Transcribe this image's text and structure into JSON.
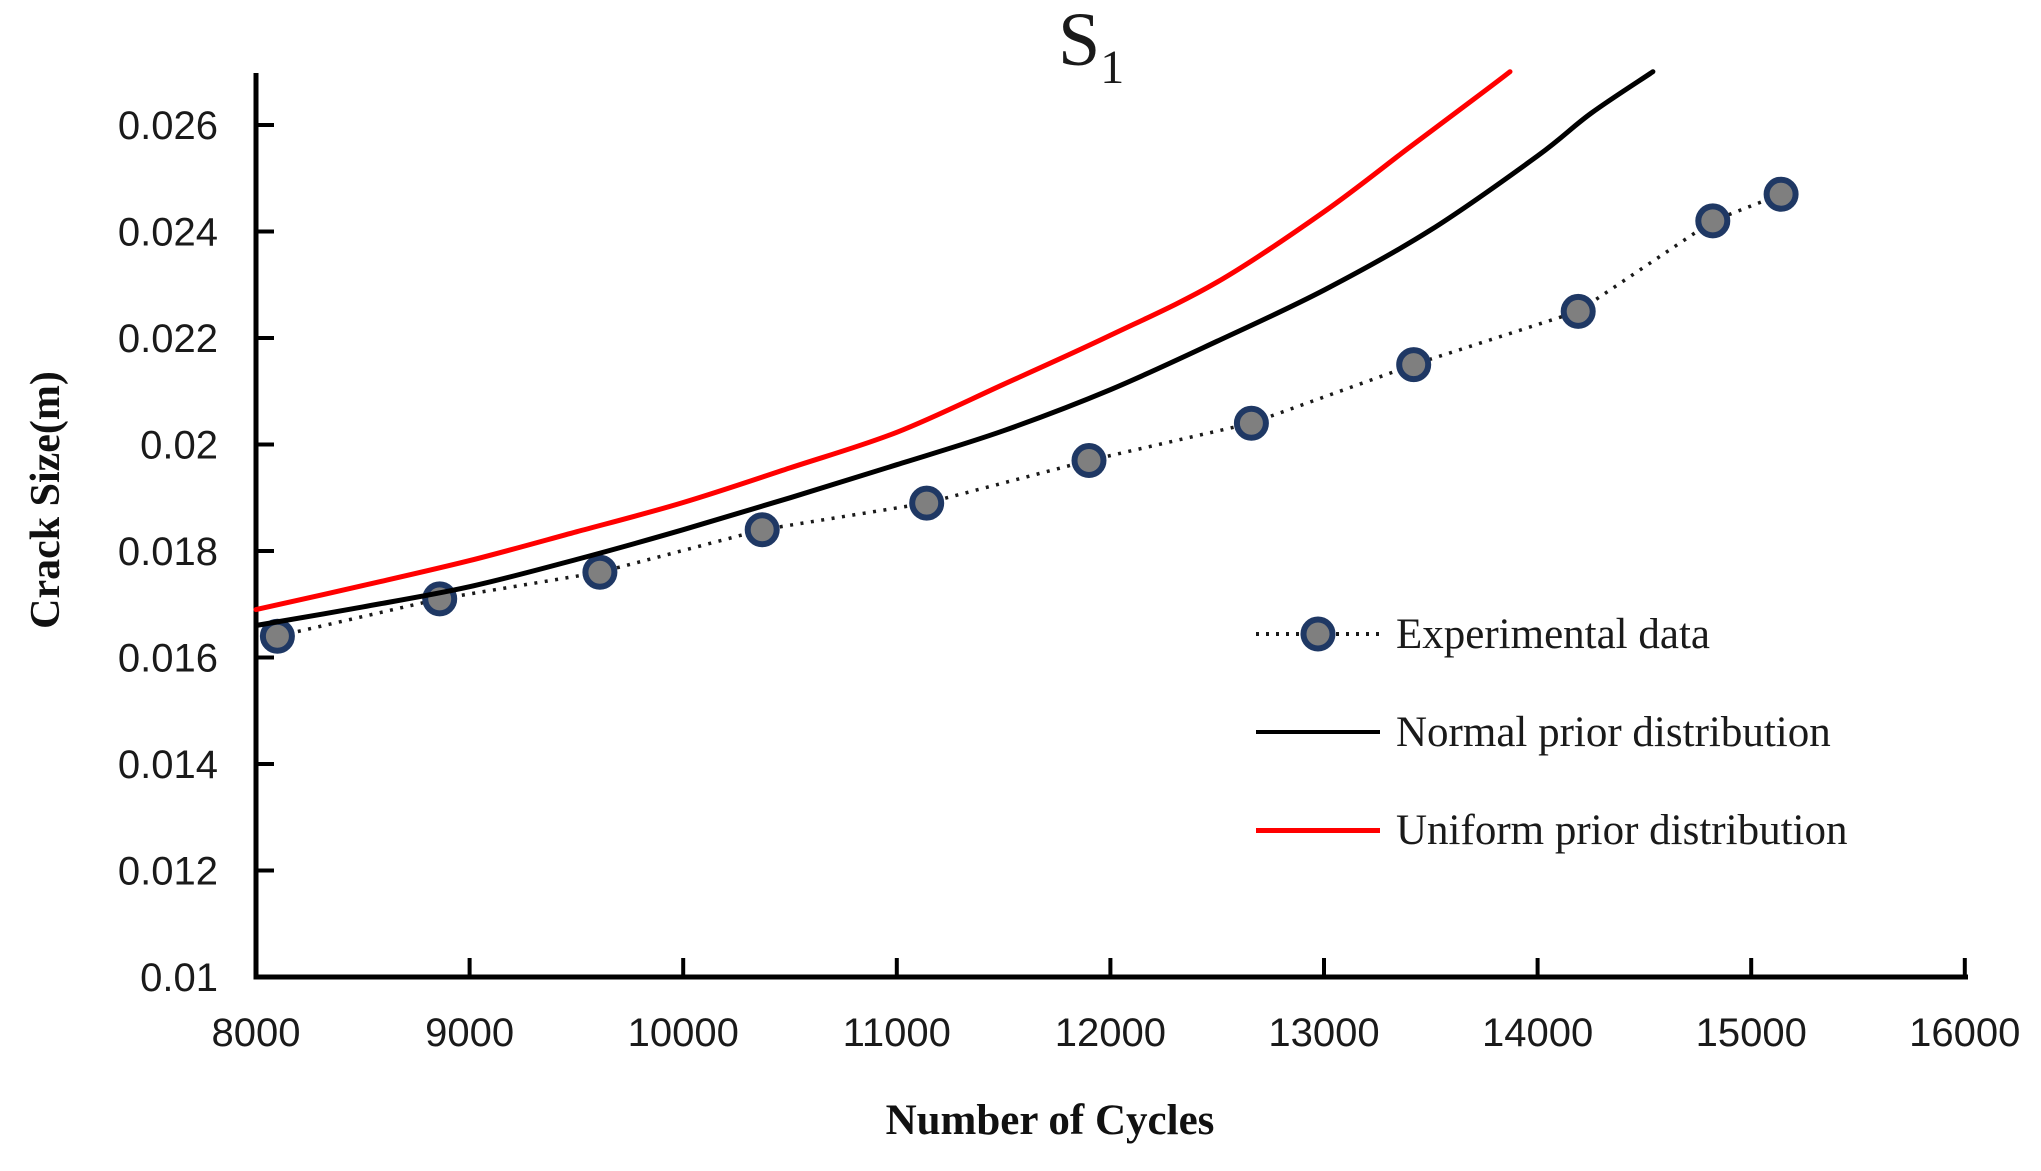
{
  "title": {
    "main": "S",
    "subscript": "1"
  },
  "axes": {
    "x": {
      "title": "Number of Cycles",
      "tick_labels": [
        "8000",
        "9000",
        "10000",
        "11000",
        "12000",
        "13000",
        "14000",
        "15000",
        "16000"
      ]
    },
    "y": {
      "title": "Crack Size(m)",
      "tick_labels": [
        "0.01",
        "0.012",
        "0.014",
        "0.016",
        "0.018",
        "0.02",
        "0.022",
        "0.024",
        "0.026"
      ]
    }
  },
  "legend": {
    "items": [
      {
        "label": "Experimental data",
        "type": "dotted-with-marker",
        "color": "#1a1a1a",
        "marker_fill": "#7f7f7f",
        "marker_edge": "#1f3864"
      },
      {
        "label": "Normal prior distribution",
        "type": "solid-line",
        "color": "#000000"
      },
      {
        "label": "Uniform prior distribution",
        "type": "solid-line",
        "color": "#ff0000"
      }
    ]
  },
  "colors": {
    "axis": "#000000",
    "text": "#1a1a1a",
    "experimental_line": "#1a1a1a",
    "marker_fill": "#7f7f7f",
    "marker_edge": "#1f3864",
    "normal_prior": "#000000",
    "uniform_prior": "#ff0000"
  },
  "chart_data": {
    "type": "line",
    "title": "S1",
    "xlabel": "Number of Cycles",
    "ylabel": "Crack Size(m)",
    "xlim": [
      8000,
      16000
    ],
    "ylim": [
      0.01,
      0.027
    ],
    "x_tick_step": 1000,
    "y_tick_step": 0.002,
    "grid": false,
    "legend_position": "center-right",
    "series": [
      {
        "name": "Experimental data",
        "style": "dotted",
        "smooth": false,
        "color": "#1a1a1a",
        "marker": "circle",
        "marker_fill": "#7f7f7f",
        "marker_edge": "#1f3864",
        "x": [
          8100,
          8860,
          9610,
          10370,
          11140,
          11900,
          12660,
          13420,
          14190,
          14820,
          15140
        ],
        "y": [
          0.0164,
          0.0171,
          0.0176,
          0.0184,
          0.0189,
          0.0197,
          0.0204,
          0.0215,
          0.0225,
          0.0242,
          0.0247
        ]
      },
      {
        "name": "Normal prior distribution",
        "style": "solid",
        "smooth": true,
        "color": "#000000",
        "marker": "none",
        "x": [
          8000,
          8500,
          9000,
          9500,
          10000,
          10500,
          11000,
          11500,
          12000,
          12500,
          13000,
          13500,
          14000,
          14250,
          14540
        ],
        "y": [
          0.0166,
          0.01695,
          0.01733,
          0.01784,
          0.0184,
          0.019,
          0.01962,
          0.02026,
          0.02103,
          0.02194,
          0.0229,
          0.02403,
          0.02542,
          0.02622,
          0.027
        ]
      },
      {
        "name": "Uniform prior distribution",
        "style": "solid",
        "smooth": true,
        "color": "#ff0000",
        "marker": "none",
        "x": [
          8000,
          8500,
          9000,
          9500,
          10000,
          10500,
          11000,
          11500,
          12000,
          12500,
          13000,
          13400,
          13700,
          13871
        ],
        "y": [
          0.0169,
          0.01735,
          0.01782,
          0.01836,
          0.01891,
          0.01956,
          0.02023,
          0.02113,
          0.02205,
          0.02305,
          0.02437,
          0.02558,
          0.02648,
          0.027
        ]
      }
    ]
  }
}
